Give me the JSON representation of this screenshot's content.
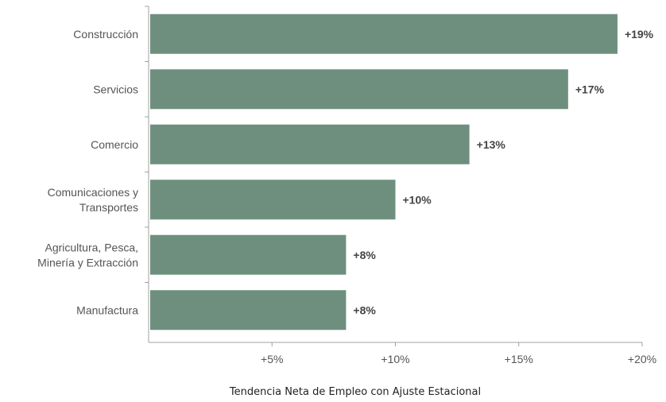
{
  "chart_data": {
    "type": "bar",
    "orientation": "horizontal",
    "categories": [
      [
        "Construcción"
      ],
      [
        "Servicios"
      ],
      [
        "Comercio"
      ],
      [
        "Comunicaciones y",
        "Transportes"
      ],
      [
        "Agricultura, Pesca,",
        "Minería y Extracción"
      ],
      [
        "Manufactura"
      ]
    ],
    "values": [
      19,
      17,
      13,
      10,
      8,
      8
    ],
    "value_labels": [
      "+19%",
      "+17%",
      "+13%",
      "+10%",
      "+8%",
      "+8%"
    ],
    "xticks": [
      5,
      10,
      15,
      20
    ],
    "xtick_labels": [
      "+5%",
      "+10%",
      "+15%",
      "+20%"
    ],
    "xlim": [
      0,
      20
    ],
    "xlabel": "Tendencia Neta de Empleo con Ajuste Estacional",
    "grid": false,
    "bar_color": "#6e8f7e",
    "axis_color": "#a0a0a0"
  }
}
